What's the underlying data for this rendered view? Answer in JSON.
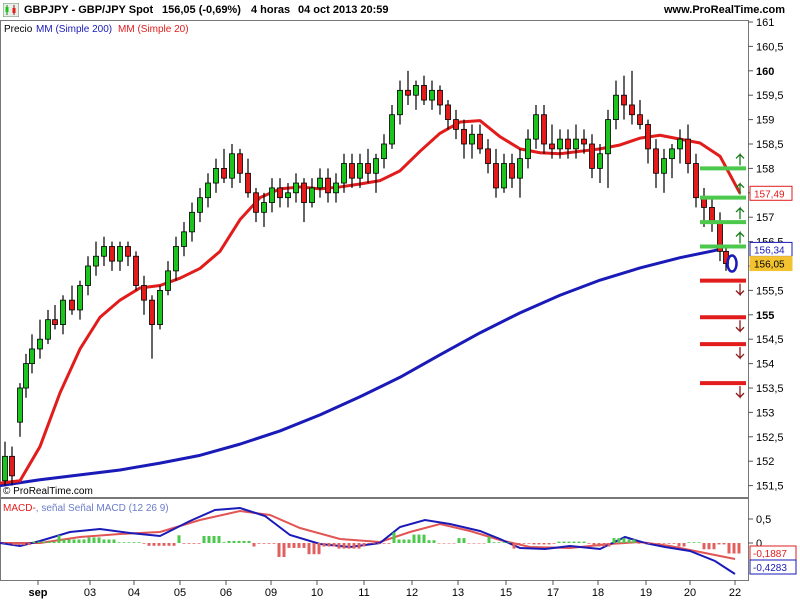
{
  "header": {
    "symbol": "GBPJPY - GBP/JPY Spot",
    "quote": "156,05 (-0,69%)",
    "timeframe": "4 horas",
    "datetime": "04 oct 2013 20:59",
    "website": "www.ProRealTime.com"
  },
  "legend": {
    "price": "Precio",
    "mm200": "MM (Simple 200)",
    "mm20": "MM (Simple 20)"
  },
  "copyright": "© ProRealTime.com",
  "macd_legend": {
    "macd": "MACD-",
    "separator": ", ",
    "signal": "señal Señal MACD (12 26 9)"
  },
  "price_axis": {
    "ticks": [
      "161",
      "160,5",
      "160",
      "159,5",
      "159",
      "158,5",
      "158",
      "157,5",
      "157",
      "156,5",
      "156",
      "155,5",
      "155",
      "154,5",
      "154",
      "153,5",
      "153",
      "152,5",
      "152",
      "151,5"
    ],
    "bold_ticks": [
      "160",
      "155"
    ],
    "value_labels": [
      {
        "value": "157,49",
        "color": "#e21b1b",
        "price": 157.49
      },
      {
        "value": "156,34",
        "color": "#1a1ab8",
        "price": 156.34
      },
      {
        "value": "156,05",
        "color": "#f2c230",
        "price": 156.05
      }
    ]
  },
  "macd_axis": {
    "ticks": [
      "0,5",
      "0"
    ],
    "value_labels": [
      {
        "value": "-0,1887",
        "color": "#e21b1b"
      },
      {
        "value": "-0,4283",
        "color": "#1a1ab8"
      }
    ]
  },
  "x_axis": {
    "labels": [
      "sep",
      "03",
      "04",
      "05",
      "06",
      "09",
      "10",
      "11",
      "12",
      "13",
      "15",
      "17",
      "18",
      "19",
      "20",
      "22"
    ]
  },
  "colors": {
    "up_candle": "#1ec41e",
    "down_candle": "#e21b1b",
    "mm20": "#e21b1b",
    "mm200": "#1a1ab8",
    "macd_line": "#1a1ab8",
    "signal_line": "#e25555",
    "level_support": "#4cc94c",
    "level_resistance": "#e21b1b"
  },
  "chart_data": {
    "type": "line",
    "title": "GBPJPY - GBP/JPY Spot",
    "ylim": [
      151.3,
      161.2
    ],
    "series": [
      {
        "name": "MM (Simple 200)",
        "color": "#1a1ab8",
        "x": [
          0,
          40,
          80,
          120,
          160,
          200,
          240,
          280,
          320,
          360,
          400,
          440,
          480,
          520,
          560,
          600,
          640,
          680,
          720
        ],
        "values": [
          151.5,
          151.62,
          151.72,
          151.82,
          151.96,
          152.12,
          152.35,
          152.62,
          152.95,
          153.32,
          153.72,
          154.18,
          154.63,
          155.04,
          155.4,
          155.71,
          155.96,
          156.17,
          156.34
        ]
      },
      {
        "name": "MM (Simple 20)",
        "color": "#e21b1b",
        "x": [
          0,
          20,
          40,
          60,
          80,
          100,
          120,
          140,
          160,
          180,
          200,
          220,
          240,
          260,
          280,
          300,
          320,
          340,
          360,
          380,
          400,
          420,
          440,
          460,
          480,
          500,
          520,
          540,
          560,
          580,
          600,
          620,
          640,
          660,
          680,
          700,
          720,
          740
        ],
        "values": [
          151.55,
          151.6,
          152.3,
          153.4,
          154.3,
          154.95,
          155.3,
          155.55,
          155.6,
          155.75,
          155.95,
          156.3,
          156.95,
          157.4,
          157.58,
          157.62,
          157.58,
          157.62,
          157.68,
          157.75,
          157.95,
          158.35,
          158.72,
          158.95,
          158.98,
          158.65,
          158.4,
          158.32,
          158.3,
          158.35,
          158.4,
          158.48,
          158.62,
          158.68,
          158.6,
          158.52,
          158.25,
          157.49
        ]
      }
    ],
    "candles": [
      [
        5,
        151.6,
        152.4,
        151.5,
        152.1
      ],
      [
        12,
        152.1,
        152.3,
        151.5,
        151.7
      ],
      [
        20,
        152.8,
        153.6,
        152.5,
        153.5
      ],
      [
        26,
        153.5,
        154.2,
        153.3,
        154.0
      ],
      [
        32,
        154.0,
        154.6,
        153.8,
        154.3
      ],
      [
        40,
        154.3,
        154.9,
        154.1,
        154.5
      ],
      [
        48,
        154.5,
        155.1,
        154.4,
        154.9
      ],
      [
        55,
        154.9,
        155.2,
        154.7,
        154.8
      ],
      [
        63,
        154.8,
        155.4,
        154.6,
        155.3
      ],
      [
        72,
        155.3,
        155.6,
        155.0,
        155.1
      ],
      [
        80,
        155.1,
        155.7,
        154.9,
        155.6
      ],
      [
        88,
        155.6,
        156.2,
        155.4,
        156.0
      ],
      [
        96,
        156.0,
        156.5,
        155.8,
        156.2
      ],
      [
        104,
        156.2,
        156.6,
        156.0,
        156.4
      ],
      [
        112,
        156.4,
        156.5,
        155.9,
        156.1
      ],
      [
        120,
        156.1,
        156.5,
        155.9,
        156.4
      ],
      [
        128,
        156.4,
        156.5,
        156.0,
        156.2
      ],
      [
        136,
        156.2,
        156.3,
        155.5,
        155.6
      ],
      [
        144,
        155.6,
        155.8,
        155.0,
        155.3
      ],
      [
        152,
        155.3,
        155.4,
        154.1,
        154.8
      ],
      [
        160,
        154.8,
        155.6,
        154.7,
        155.5
      ],
      [
        168,
        155.5,
        156.1,
        155.4,
        155.9
      ],
      [
        176,
        155.9,
        156.6,
        155.7,
        156.4
      ],
      [
        184,
        156.4,
        156.9,
        156.2,
        156.7
      ],
      [
        192,
        156.7,
        157.3,
        156.5,
        157.1
      ],
      [
        200,
        157.1,
        157.6,
        156.9,
        157.4
      ],
      [
        208,
        157.4,
        157.9,
        157.2,
        157.7
      ],
      [
        216,
        157.7,
        158.2,
        157.5,
        158.0
      ],
      [
        224,
        158.0,
        158.4,
        157.7,
        157.8
      ],
      [
        232,
        157.8,
        158.5,
        157.6,
        158.3
      ],
      [
        240,
        158.3,
        158.4,
        157.7,
        157.9
      ],
      [
        248,
        157.9,
        158.2,
        157.4,
        157.5
      ],
      [
        256,
        157.5,
        157.6,
        156.9,
        157.1
      ],
      [
        264,
        157.1,
        157.5,
        156.8,
        157.3
      ],
      [
        272,
        157.3,
        157.8,
        157.1,
        157.6
      ],
      [
        280,
        157.6,
        157.8,
        157.2,
        157.4
      ],
      [
        288,
        157.4,
        157.7,
        157.2,
        157.5
      ],
      [
        296,
        157.5,
        157.9,
        157.3,
        157.7
      ],
      [
        304,
        157.7,
        157.8,
        156.9,
        157.3
      ],
      [
        312,
        157.3,
        157.8,
        157.2,
        157.6
      ],
      [
        320,
        157.6,
        158.0,
        157.4,
        157.8
      ],
      [
        328,
        157.8,
        158.0,
        157.3,
        157.5
      ],
      [
        336,
        157.5,
        157.9,
        157.3,
        157.7
      ],
      [
        344,
        157.7,
        158.3,
        157.5,
        158.1
      ],
      [
        352,
        158.1,
        158.3,
        157.6,
        157.8
      ],
      [
        360,
        157.8,
        158.3,
        157.6,
        158.1
      ],
      [
        368,
        158.1,
        158.4,
        157.7,
        157.9
      ],
      [
        376,
        157.9,
        158.3,
        157.5,
        158.2
      ],
      [
        384,
        158.2,
        158.7,
        158.0,
        158.5
      ],
      [
        392,
        158.5,
        159.3,
        158.4,
        159.1
      ],
      [
        400,
        159.1,
        159.8,
        158.9,
        159.6
      ],
      [
        408,
        159.6,
        160.0,
        159.3,
        159.5
      ],
      [
        416,
        159.5,
        159.8,
        159.2,
        159.7
      ],
      [
        424,
        159.7,
        159.9,
        159.3,
        159.4
      ],
      [
        432,
        159.4,
        159.8,
        159.2,
        159.6
      ],
      [
        440,
        159.6,
        159.7,
        159.1,
        159.3
      ],
      [
        448,
        159.3,
        159.4,
        158.8,
        159.0
      ],
      [
        456,
        159.0,
        159.2,
        158.6,
        158.8
      ],
      [
        464,
        158.8,
        159.0,
        158.2,
        158.5
      ],
      [
        472,
        158.5,
        158.9,
        158.2,
        158.7
      ],
      [
        480,
        158.7,
        158.9,
        158.3,
        158.4
      ],
      [
        488,
        158.4,
        158.6,
        157.9,
        158.1
      ],
      [
        496,
        158.1,
        158.4,
        157.4,
        157.6
      ],
      [
        504,
        157.6,
        158.3,
        157.5,
        158.1
      ],
      [
        512,
        158.1,
        158.3,
        157.6,
        157.8
      ],
      [
        520,
        157.8,
        158.4,
        157.4,
        158.2
      ],
      [
        528,
        158.2,
        158.8,
        158.0,
        158.6
      ],
      [
        536,
        158.6,
        159.3,
        158.4,
        159.1
      ],
      [
        544,
        159.1,
        159.3,
        158.3,
        158.5
      ],
      [
        552,
        158.5,
        158.9,
        158.2,
        158.4
      ],
      [
        560,
        158.4,
        158.8,
        158.2,
        158.6
      ],
      [
        568,
        158.6,
        158.8,
        158.2,
        158.4
      ],
      [
        576,
        158.4,
        158.9,
        158.2,
        158.6
      ],
      [
        584,
        158.6,
        158.8,
        158.3,
        158.5
      ],
      [
        592,
        158.5,
        158.7,
        157.8,
        158.0
      ],
      [
        600,
        158.0,
        158.5,
        157.7,
        158.3
      ],
      [
        608,
        158.3,
        159.2,
        157.6,
        159.0
      ],
      [
        616,
        159.0,
        159.8,
        158.8,
        159.5
      ],
      [
        624,
        159.5,
        159.9,
        159.0,
        159.3
      ],
      [
        632,
        159.3,
        160.0,
        158.9,
        159.1
      ],
      [
        640,
        159.1,
        159.4,
        158.8,
        158.9
      ],
      [
        648,
        158.9,
        159.0,
        158.1,
        158.4
      ],
      [
        656,
        158.4,
        158.6,
        157.6,
        157.9
      ],
      [
        664,
        157.9,
        158.4,
        157.5,
        158.2
      ],
      [
        672,
        158.2,
        158.5,
        157.8,
        158.4
      ],
      [
        680,
        158.4,
        158.8,
        158.1,
        158.6
      ],
      [
        688,
        158.6,
        158.9,
        157.9,
        158.1
      ],
      [
        696,
        158.1,
        158.3,
        157.2,
        157.4
      ],
      [
        704,
        157.4,
        157.6,
        156.8,
        157.2
      ],
      [
        712,
        157.2,
        157.4,
        156.7,
        156.9
      ],
      [
        720,
        156.9,
        157.1,
        156.1,
        156.3
      ],
      [
        726,
        156.3,
        156.4,
        155.9,
        156.05
      ]
    ],
    "levels": {
      "support": [
        158.0,
        157.4,
        156.9,
        156.4
      ],
      "resistance": [
        155.7,
        154.95,
        154.4,
        153.6
      ]
    }
  }
}
